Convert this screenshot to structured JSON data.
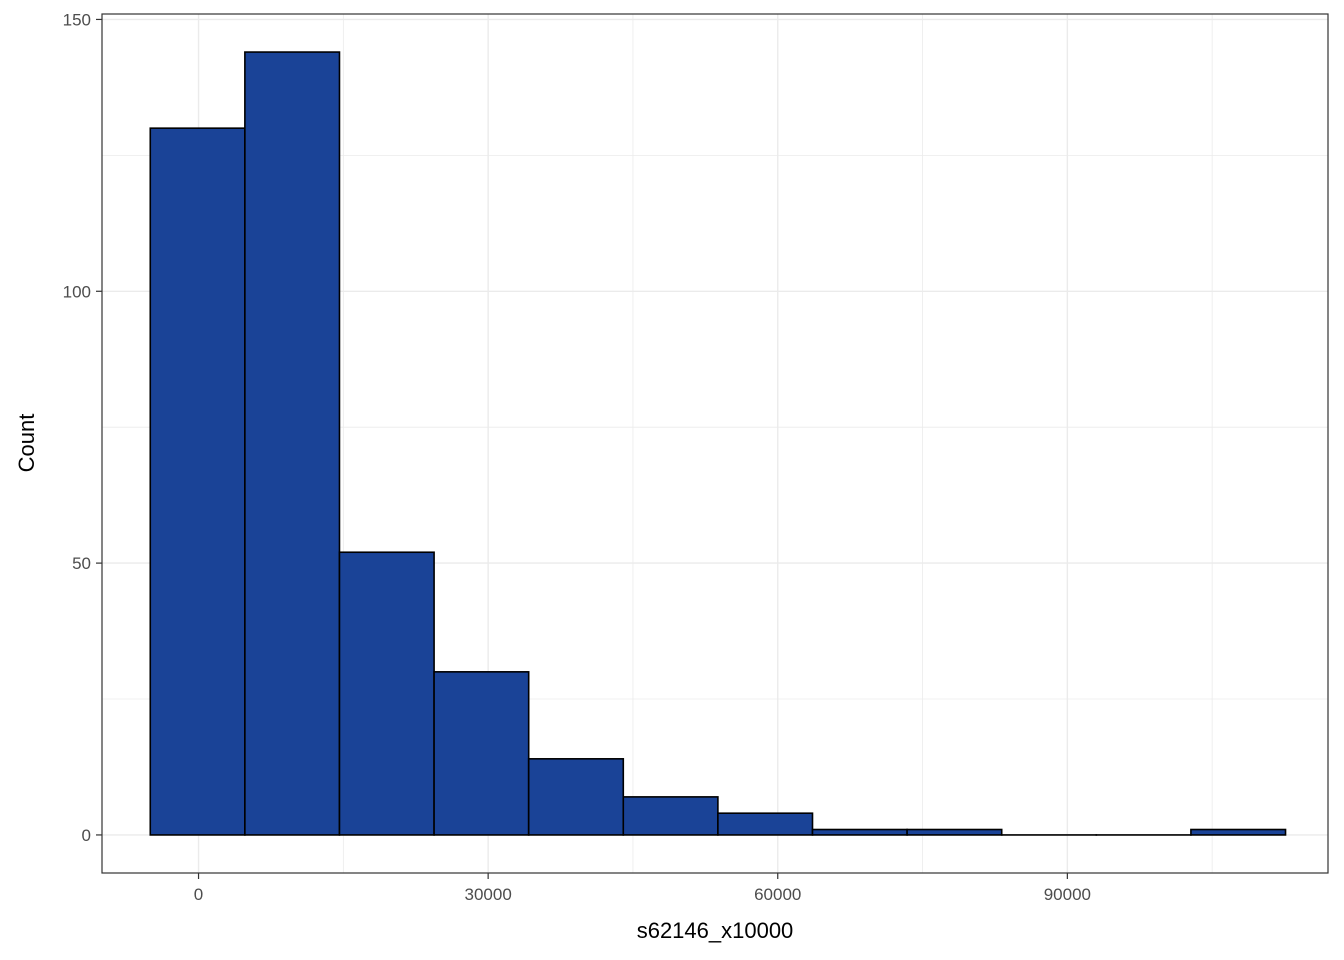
{
  "chart_data": {
    "type": "histogram",
    "xlabel": "s62146_x10000",
    "ylabel": "Count",
    "xlim": [
      -10000,
      117000
    ],
    "ylim": [
      -7,
      151
    ],
    "x_ticks": [
      0,
      30000,
      60000,
      90000
    ],
    "y_ticks": [
      0,
      50,
      100,
      150
    ],
    "grid": true,
    "bar_color": "#1a4397",
    "bar_edge_color": "#000000",
    "panel_background": "#ffffff",
    "grid_color": "#ebebeb",
    "bins": [
      {
        "x0": -5000,
        "x1": 4800,
        "count": 130
      },
      {
        "x0": 4800,
        "x1": 14600,
        "count": 144
      },
      {
        "x0": 14600,
        "x1": 24400,
        "count": 52
      },
      {
        "x0": 24400,
        "x1": 34200,
        "count": 30
      },
      {
        "x0": 34200,
        "x1": 44000,
        "count": 14
      },
      {
        "x0": 44000,
        "x1": 53800,
        "count": 7
      },
      {
        "x0": 53800,
        "x1": 63600,
        "count": 4
      },
      {
        "x0": 63600,
        "x1": 73400,
        "count": 1
      },
      {
        "x0": 73400,
        "x1": 83200,
        "count": 1
      },
      {
        "x0": 83200,
        "x1": 93000,
        "count": 0
      },
      {
        "x0": 93000,
        "x1": 102800,
        "count": 0
      },
      {
        "x0": 102800,
        "x1": 112600,
        "count": 1
      }
    ]
  }
}
